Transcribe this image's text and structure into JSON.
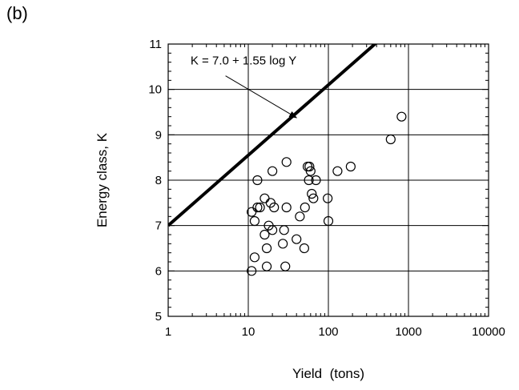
{
  "panel_label": "(b)",
  "chart_data": {
    "type": "scatter",
    "title": "",
    "xlabel": "Yield  (tons)",
    "ylabel": "Energy class, K",
    "xscale": "log",
    "xlim": [
      1,
      10000
    ],
    "ylim": [
      5,
      11
    ],
    "x_ticks": [
      1,
      10,
      100,
      1000,
      10000
    ],
    "x_tick_labels": [
      "1",
      "10",
      "100",
      "1000",
      "10000"
    ],
    "y_ticks": [
      5,
      6,
      7,
      8,
      9,
      10,
      11
    ],
    "y_tick_labels": [
      "5",
      "6",
      "7",
      "8",
      "9",
      "10",
      "11"
    ],
    "grid": true,
    "series": [
      {
        "marker": "open-circle",
        "points": [
          [
            11,
            6.0
          ],
          [
            12,
            6.3
          ],
          [
            11,
            7.3
          ],
          [
            12,
            7.1
          ],
          [
            13,
            8.0
          ],
          [
            13,
            7.4
          ],
          [
            14,
            7.4
          ],
          [
            16,
            7.6
          ],
          [
            16,
            6.8
          ],
          [
            17,
            6.1
          ],
          [
            17,
            6.5
          ],
          [
            18,
            7.0
          ],
          [
            19,
            7.5
          ],
          [
            20,
            6.9
          ],
          [
            20,
            8.2
          ],
          [
            21,
            7.4
          ],
          [
            27,
            6.6
          ],
          [
            28,
            6.9
          ],
          [
            29,
            6.1
          ],
          [
            30,
            8.4
          ],
          [
            30,
            7.4
          ],
          [
            40,
            6.7
          ],
          [
            44,
            7.2
          ],
          [
            50,
            6.5
          ],
          [
            51,
            7.4
          ],
          [
            55,
            8.3
          ],
          [
            57,
            8.0
          ],
          [
            58,
            8.3
          ],
          [
            60,
            8.2
          ],
          [
            62,
            7.7
          ],
          [
            65,
            7.6
          ],
          [
            70,
            8.0
          ],
          [
            98,
            7.6
          ],
          [
            100,
            7.1
          ],
          [
            130,
            8.2
          ],
          [
            190,
            8.3
          ],
          [
            600,
            8.9
          ],
          [
            820,
            9.4
          ]
        ]
      }
    ],
    "line": {
      "label": "K = 7.0 + 1.55 log Y",
      "intercept": 7.0,
      "slope": 1.55,
      "x_range": [
        1,
        10000
      ]
    },
    "colors": {
      "line": "#000000",
      "marker": "#000000",
      "grid": "#000000"
    }
  }
}
